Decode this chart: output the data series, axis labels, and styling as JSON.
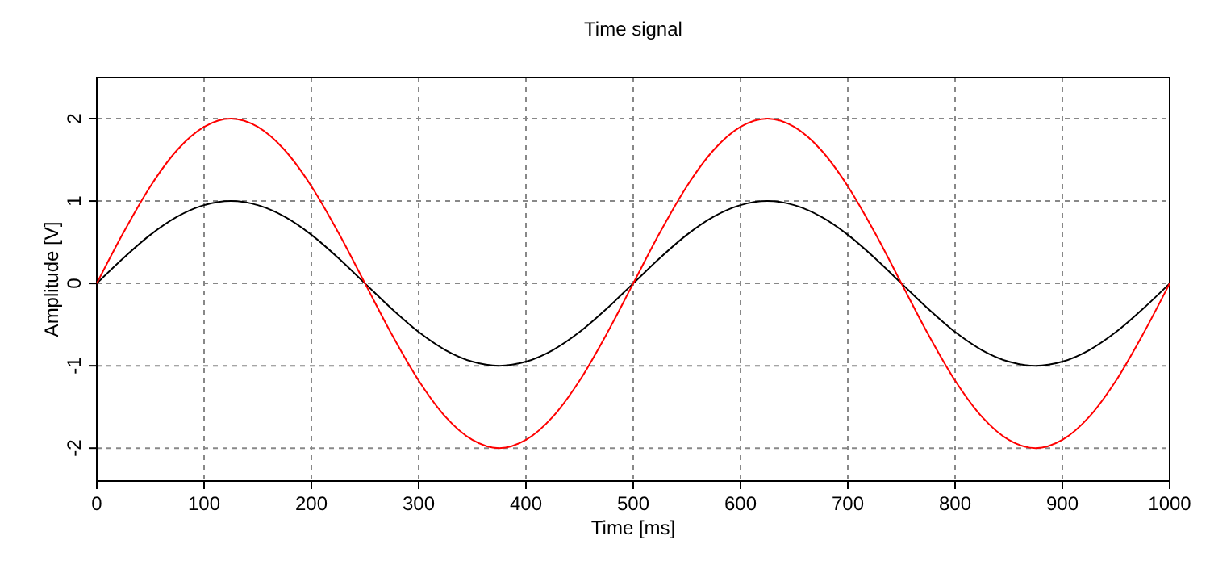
{
  "chart_data": {
    "type": "line",
    "title": "Time signal",
    "xlabel": "Time [ms]",
    "ylabel": "Amplitude [V]",
    "x": [
      0,
      25,
      50,
      75,
      100,
      125,
      150,
      175,
      200,
      225,
      250,
      275,
      300,
      325,
      350,
      375,
      400,
      425,
      450,
      475,
      500,
      525,
      550,
      575,
      600,
      625,
      650,
      675,
      700,
      725,
      750,
      775,
      800,
      825,
      850,
      875,
      900,
      925,
      950,
      975,
      1000
    ],
    "series": [
      {
        "color": "#000000",
        "values": [
          0,
          0.31,
          0.59,
          0.81,
          0.95,
          1,
          0.95,
          0.81,
          0.59,
          0.31,
          0,
          -0.31,
          -0.59,
          -0.81,
          -0.95,
          -1,
          -0.95,
          -0.81,
          -0.59,
          -0.31,
          0,
          0.31,
          0.59,
          0.81,
          0.95,
          1,
          0.95,
          0.81,
          0.59,
          0.31,
          0,
          -0.31,
          -0.59,
          -0.81,
          -0.95,
          -1,
          -0.95,
          -0.81,
          -0.59,
          -0.31,
          0
        ]
      },
      {
        "color": "#ff0000",
        "values": [
          0,
          0.62,
          1.18,
          1.62,
          1.9,
          2,
          1.9,
          1.62,
          1.18,
          0.62,
          0,
          -0.62,
          -1.18,
          -1.62,
          -1.9,
          -2,
          -1.9,
          -1.62,
          -1.18,
          -0.62,
          0,
          0.62,
          1.18,
          1.62,
          1.9,
          2,
          1.9,
          1.62,
          1.18,
          0.62,
          0,
          -0.62,
          -1.18,
          -1.62,
          -1.9,
          -2,
          -1.9,
          -1.62,
          -1.18,
          -0.62,
          0
        ]
      }
    ],
    "xlim": [
      0,
      1000
    ],
    "xticks": [
      0,
      100,
      200,
      300,
      400,
      500,
      600,
      700,
      800,
      900,
      1000
    ],
    "ylim": [
      -2.4,
      2.5
    ],
    "yticks": [
      -2,
      -1,
      0,
      1,
      2
    ],
    "grid": true,
    "marker": "none",
    "line_style": "solid"
  }
}
